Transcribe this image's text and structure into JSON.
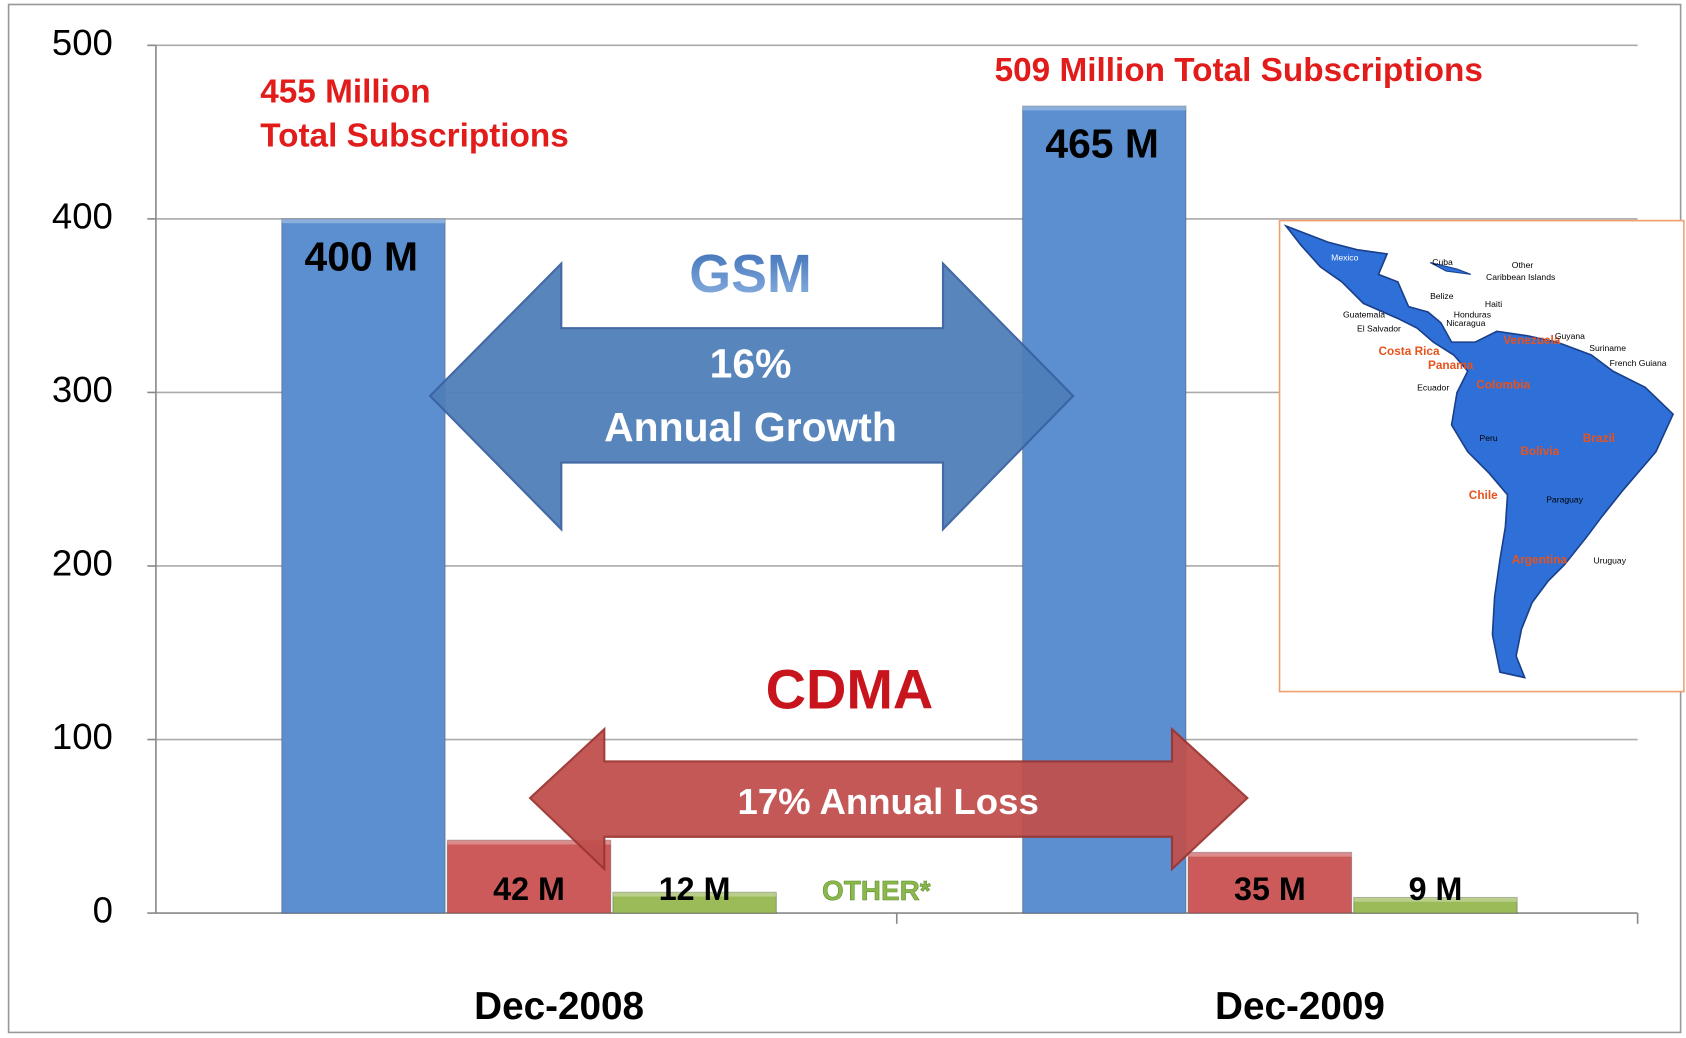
{
  "chart_data": {
    "type": "bar",
    "categories": [
      "Dec-2008",
      "Dec-2009"
    ],
    "series": [
      {
        "name": "GSM",
        "color": "#5b8fd0",
        "values": [
          400,
          465
        ],
        "value_labels": [
          "400 M",
          "465 M"
        ]
      },
      {
        "name": "CDMA",
        "color": "#cc5a5a",
        "values": [
          42,
          35
        ],
        "value_labels": [
          "42 M",
          "35 M"
        ]
      },
      {
        "name": "OTHER*",
        "color": "#9bbb59",
        "values": [
          12,
          9
        ],
        "value_labels": [
          "12 M",
          "9 M"
        ]
      }
    ],
    "ylim": [
      0,
      500
    ],
    "yticks": [
      0,
      100,
      200,
      300,
      400,
      500
    ],
    "grid": true,
    "annotations": {
      "total_2008": [
        "455 Million",
        "Total Subscriptions"
      ],
      "total_2009": "509 Million Total Subscriptions",
      "gsm_growth": [
        "16%",
        "Annual Growth"
      ],
      "cdma_loss": "17%  Annual Loss"
    },
    "map_labels": [
      {
        "text": "Mexico"
      },
      {
        "text": "Cuba"
      },
      {
        "text": "Other"
      },
      {
        "text": "Caribbean Islands"
      },
      {
        "text": "Belize"
      },
      {
        "text": "Haiti"
      },
      {
        "text": "Honduras"
      },
      {
        "text": "Guatemala"
      },
      {
        "text": "Nicaragua"
      },
      {
        "text": "El Salvador"
      },
      {
        "text": "Costa Rica",
        "highlighted": true
      },
      {
        "text": "Panama",
        "highlighted": true
      },
      {
        "text": "Venezuela",
        "highlighted": true
      },
      {
        "text": "Guyana"
      },
      {
        "text": "Suriname"
      },
      {
        "text": "French Guiana"
      },
      {
        "text": "Ecuador"
      },
      {
        "text": "Colombia",
        "highlighted": true
      },
      {
        "text": "Peru"
      },
      {
        "text": "Brazil",
        "highlighted": true
      },
      {
        "text": "Bolivia",
        "highlighted": true
      },
      {
        "text": "Paraguay"
      },
      {
        "text": "Chile",
        "highlighted": true
      },
      {
        "text": "Argentina",
        "highlighted": true
      },
      {
        "text": "Uruguay"
      }
    ]
  }
}
